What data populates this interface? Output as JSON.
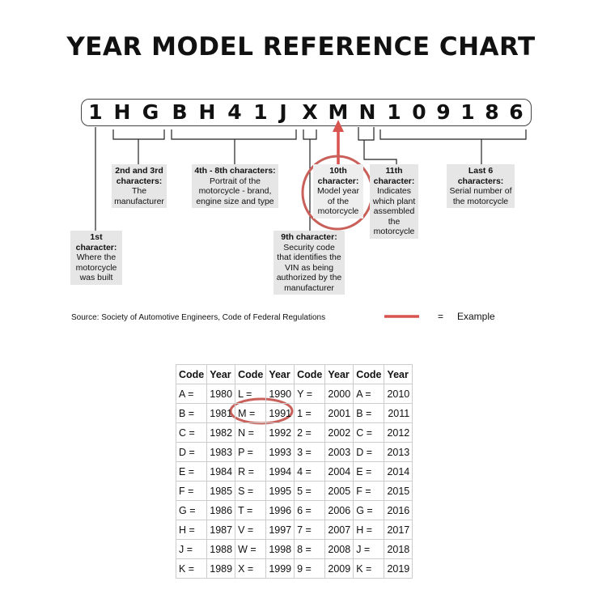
{
  "title": "YEAR MODEL REFERENCE CHART",
  "vin": [
    "1",
    "H",
    "G",
    "B",
    "H",
    "4",
    "1",
    "J",
    "X",
    "M",
    "N",
    "1",
    "0",
    "9",
    "1",
    "8",
    "6"
  ],
  "labels": {
    "c1": {
      "head": "1st character:",
      "body": "Where the motorcycle was built"
    },
    "c23": {
      "head": "2nd and 3rd characters:",
      "body": "The manufacturer"
    },
    "c48": {
      "head": "4th - 8th characters:",
      "body": "Portrait of the motorcycle - brand, engine size and type"
    },
    "c9": {
      "head": "9th character:",
      "body": "Security code that identifies the VIN as being authorized by the manufacturer"
    },
    "c10": {
      "head": "10th character:",
      "body": "Model year of the motorcycle"
    },
    "c11": {
      "head": "11th character:",
      "body": "Indicates which plant assembled the motorcycle"
    },
    "last6": {
      "head": "Last 6 characters:",
      "body": "Serial number of the motorcycle"
    }
  },
  "source": "Source:  Society of Automotive Engineers, Code of Federal Regulations",
  "legend": {
    "equals": "=",
    "label": "Example",
    "color": "#d9534f"
  },
  "table": {
    "headers": [
      "Code",
      "Year",
      "Code",
      "Year",
      "Code",
      "Year",
      "Code",
      "Year"
    ],
    "rows": [
      [
        "A =",
        "1980",
        "L =",
        "1990",
        "Y =",
        "2000",
        "A =",
        "2010"
      ],
      [
        "B =",
        "1981",
        "M =",
        "1991",
        "1 =",
        "2001",
        "B =",
        "2011"
      ],
      [
        "C =",
        "1982",
        "N =",
        "1992",
        "2 =",
        "2002",
        "C =",
        "2012"
      ],
      [
        "D =",
        "1983",
        "P =",
        "1993",
        "3 =",
        "2003",
        "D =",
        "2013"
      ],
      [
        "E =",
        "1984",
        "R =",
        "1994",
        "4 =",
        "2004",
        "E =",
        "2014"
      ],
      [
        "F =",
        "1985",
        "S =",
        "1995",
        "5 =",
        "2005",
        "F =",
        "2015"
      ],
      [
        "G =",
        "1986",
        "T =",
        "1996",
        "6 =",
        "2006",
        "G =",
        "2016"
      ],
      [
        "H =",
        "1987",
        "V =",
        "1997",
        "7 =",
        "2007",
        "H =",
        "2017"
      ],
      [
        "J =",
        "1988",
        "W =",
        "1998",
        "8 =",
        "2008",
        "J =",
        "2018"
      ],
      [
        "K =",
        "1989",
        "X =",
        "1999",
        "9 =",
        "2009",
        "K =",
        "2019"
      ]
    ]
  }
}
